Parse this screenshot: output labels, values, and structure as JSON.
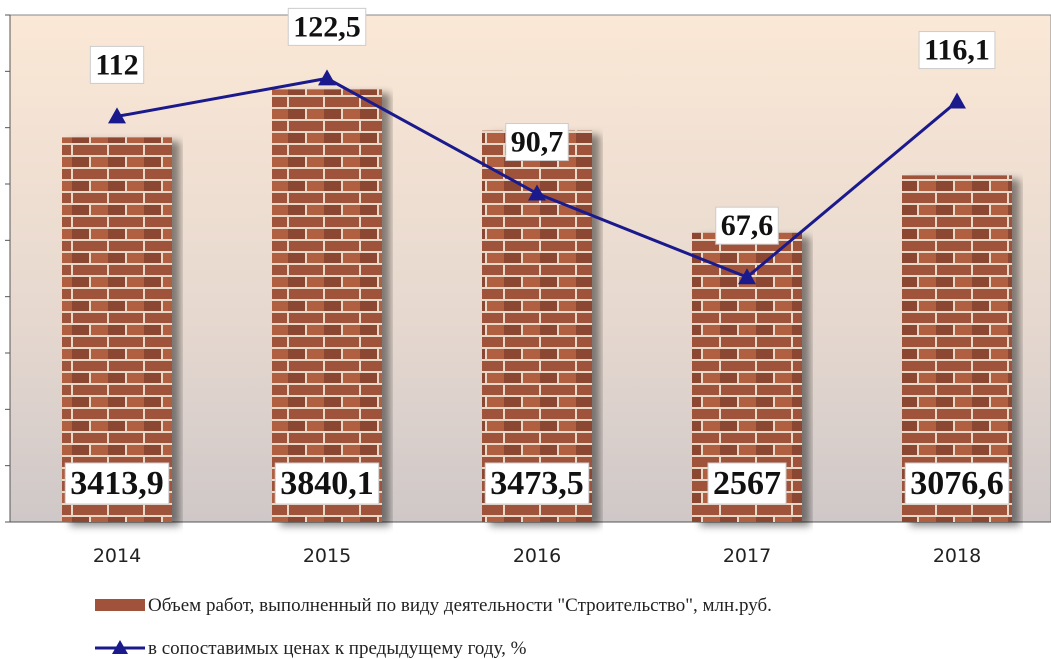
{
  "chart_data": {
    "type": "bar-line",
    "categories": [
      "2014",
      "2015",
      "2016",
      "2017",
      "2018"
    ],
    "series": [
      {
        "name": "Объем работ, выполненный по виду деятельности \"Строительство\", млн.руб.",
        "type": "bar",
        "color": "#a0533a",
        "values": [
          3413.9,
          3840.1,
          3473.5,
          2567,
          3076.6
        ],
        "value_labels": [
          "3413,9",
          "3840,1",
          "3473,5",
          "2567",
          "3076,6"
        ]
      },
      {
        "name": "в сопоставимых ценах к предыдущему году, %",
        "type": "line",
        "axis": "y2",
        "color": "#1a1a8c",
        "values": [
          112,
          122.5,
          90.7,
          67.6,
          116.1
        ],
        "value_labels": [
          "112",
          "122,5",
          "90,7",
          "67,6",
          "116,1"
        ]
      }
    ],
    "ylim": [
      0,
      4500
    ],
    "yticks": [
      0,
      500,
      1000,
      1500,
      2000,
      2500,
      3000,
      3500,
      4000,
      4500
    ],
    "y2lim": [
      0,
      140
    ]
  }
}
